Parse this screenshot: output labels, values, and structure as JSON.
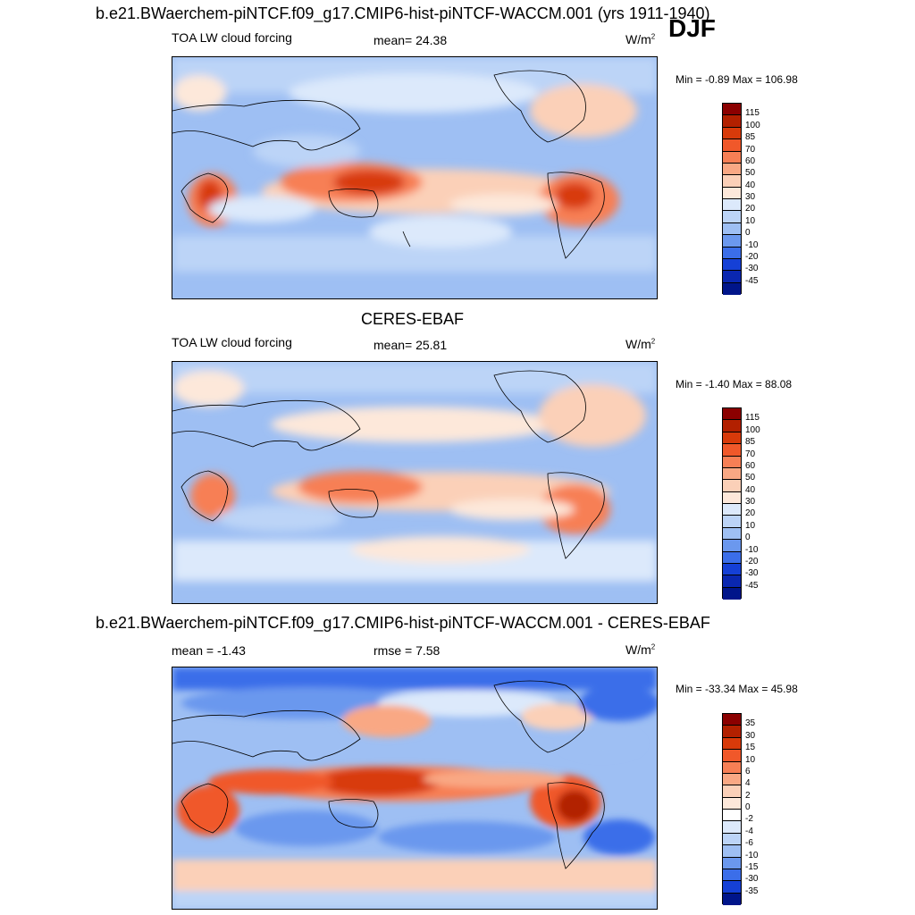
{
  "figure": {
    "title": "b.e21.BWaerchem-piNTCF.f09_g17.CMIP6-hist-piNTCF-WACCM.001 (yrs 1911-1940)",
    "season": "DJF"
  },
  "panels": [
    {
      "title": "",
      "variable": "TOA LW cloud forcing",
      "stat": "mean=  24.38",
      "units_base": "W/m",
      "units_exp": "2",
      "minmax": "Min =  -0.89 Max = 106.98",
      "colorbar_labels": [
        "115",
        "100",
        "85",
        "70",
        "60",
        "50",
        "40",
        "30",
        "20",
        "10",
        "0",
        "-10",
        "-20",
        "-30",
        "-45"
      ]
    },
    {
      "title": "CERES-EBAF",
      "variable": "TOA LW cloud forcing",
      "stat": "mean=  25.81",
      "units_base": "W/m",
      "units_exp": "2",
      "minmax": "Min =  -1.40 Max =  88.08",
      "colorbar_labels": [
        "115",
        "100",
        "85",
        "70",
        "60",
        "50",
        "40",
        "30",
        "20",
        "10",
        "0",
        "-10",
        "-20",
        "-30",
        "-45"
      ]
    },
    {
      "title": "b.e21.BWaerchem-piNTCF.f09_g17.CMIP6-hist-piNTCF-WACCM.001 - CERES-EBAF",
      "stat_mean": "mean =  -1.43",
      "stat_rmse": "rmse =   7.58",
      "units_base": "W/m",
      "units_exp": "2",
      "minmax": "Min = -33.34 Max =  45.98",
      "colorbar_labels": [
        "35",
        "30",
        "15",
        "10",
        "6",
        "4",
        "2",
        "0",
        "-2",
        "-4",
        "-6",
        "-10",
        "-15",
        "-30",
        "-35"
      ]
    }
  ],
  "colors": {
    "abs_scale": [
      "#8b0000",
      "#b22000",
      "#d83a0a",
      "#f0582a",
      "#f77f55",
      "#f9a884",
      "#fbd0b8",
      "#fde8da",
      "#dce9fb",
      "#bcd4f7",
      "#9ebff3",
      "#6b98ee",
      "#3b6ee9",
      "#1540d6",
      "#0a27b0",
      "#00158a"
    ],
    "diff_scale": [
      "#8b0000",
      "#b22000",
      "#d83a0a",
      "#f0582a",
      "#f77f55",
      "#f9a884",
      "#fbd0b8",
      "#fde8da",
      "#ffffff",
      "#dce9fb",
      "#bcd4f7",
      "#9ebff3",
      "#6b98ee",
      "#3b6ee9",
      "#1540d6",
      "#00158a"
    ]
  }
}
